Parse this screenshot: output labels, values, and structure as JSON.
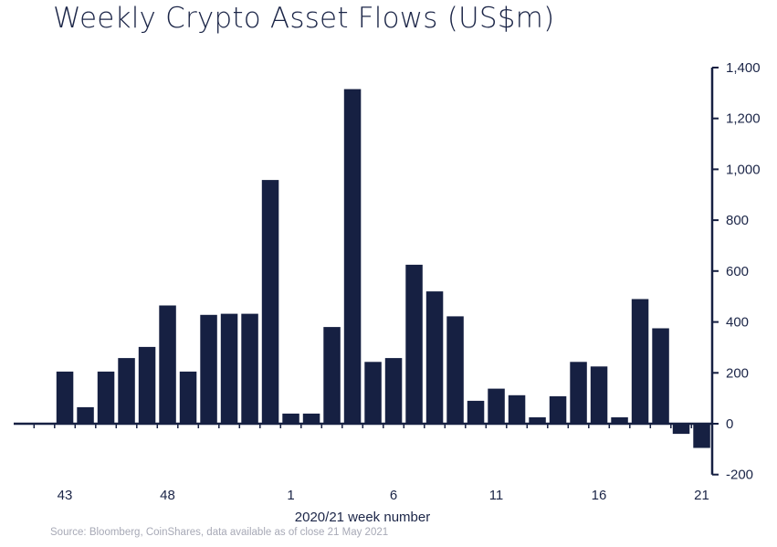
{
  "title": "Weekly Crypto Asset Flows (US$m)",
  "source": "Source: Bloomberg, CoinShares, data available as of close 21 May 2021",
  "colors": {
    "bar": "#162042",
    "text": "#1b2547",
    "axis": "#162042",
    "source_text": "#a7a9b6"
  },
  "chart_data": {
    "type": "bar",
    "title": "Weekly Crypto Asset Flows (US$m)",
    "xlabel": "2020/21 week number",
    "ylabel": "",
    "ylim": [
      -200,
      1400
    ],
    "yticks": [
      -200,
      0,
      200,
      400,
      600,
      800,
      1000,
      1200,
      1400
    ],
    "ytick_labels": [
      "-200",
      "0",
      "200",
      "400",
      "600",
      "800",
      "1,000",
      "1,200",
      "1,400"
    ],
    "y_axis_position": "right",
    "grid": false,
    "categories": [
      "41",
      "42",
      "43",
      "44",
      "45",
      "46",
      "47",
      "48",
      "49",
      "50",
      "51",
      "52",
      "53",
      "1",
      "2",
      "3",
      "4",
      "5",
      "6",
      "7",
      "8",
      "9",
      "10",
      "11",
      "12",
      "13",
      "14",
      "15",
      "16",
      "17",
      "18",
      "19",
      "20",
      "21"
    ],
    "values": [
      0,
      0,
      205,
      65,
      205,
      258,
      302,
      465,
      205,
      428,
      432,
      432,
      958,
      40,
      40,
      380,
      1315,
      243,
      258,
      625,
      520,
      422,
      90,
      138,
      112,
      25,
      108,
      243,
      225,
      25,
      490,
      375,
      -40,
      -95
    ],
    "xtick_labels": [
      {
        "index": 2,
        "label": "43"
      },
      {
        "index": 7,
        "label": "48"
      },
      {
        "index": 13,
        "label": "1"
      },
      {
        "index": 18,
        "label": "6"
      },
      {
        "index": 23,
        "label": "11"
      },
      {
        "index": 28,
        "label": "16"
      },
      {
        "index": 33,
        "label": "21"
      }
    ]
  }
}
